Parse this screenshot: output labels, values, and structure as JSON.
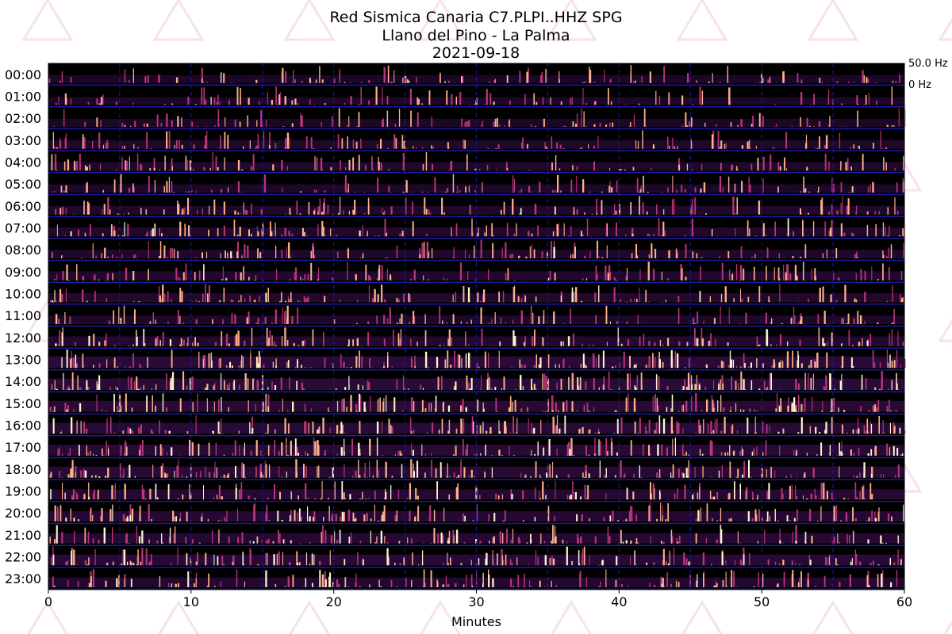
{
  "title": {
    "line1": "Red Sismica Canaria C7.PLPI..HHZ SPG",
    "line2": "Llano del Pino - La Palma",
    "line3": "2021-09-18"
  },
  "chart_data": {
    "type": "heatmap",
    "description_of_axes": "Helicorder-style spectrogram: one row per hour, x axis in minutes",
    "x": {
      "label": "Minutes",
      "ticks": [
        0,
        10,
        20,
        30,
        40,
        50,
        60
      ],
      "range": [
        0,
        60
      ]
    },
    "y": {
      "rows": [
        "00:00",
        "01:00",
        "02:00",
        "03:00",
        "04:00",
        "05:00",
        "06:00",
        "07:00",
        "08:00",
        "09:00",
        "10:00",
        "11:00",
        "12:00",
        "13:00",
        "14:00",
        "15:00",
        "16:00",
        "17:00",
        "18:00",
        "19:00",
        "20:00",
        "21:00",
        "22:00",
        "23:00"
      ]
    },
    "frequency_scale": {
      "top": "50.0 Hz",
      "bottom": "0 Hz"
    },
    "vertical_gridlines_minutes": [
      5,
      10,
      15,
      20,
      25,
      30,
      35,
      40,
      45,
      50,
      55
    ],
    "row_activity": [
      0.3,
      0.3,
      0.32,
      0.38,
      0.4,
      0.36,
      0.42,
      0.45,
      0.42,
      0.45,
      0.45,
      0.4,
      0.55,
      0.8,
      0.78,
      0.72,
      0.7,
      0.72,
      0.72,
      0.62,
      0.62,
      0.62,
      0.7,
      0.55
    ],
    "colors": {
      "background": "#000000",
      "low": "#3b0f4f",
      "mid": "#b73779",
      "high": "#fcb28a",
      "peak": "#fdf4d0",
      "gridline": "#1a1aa0",
      "watermark": "#e8a8c8"
    }
  }
}
